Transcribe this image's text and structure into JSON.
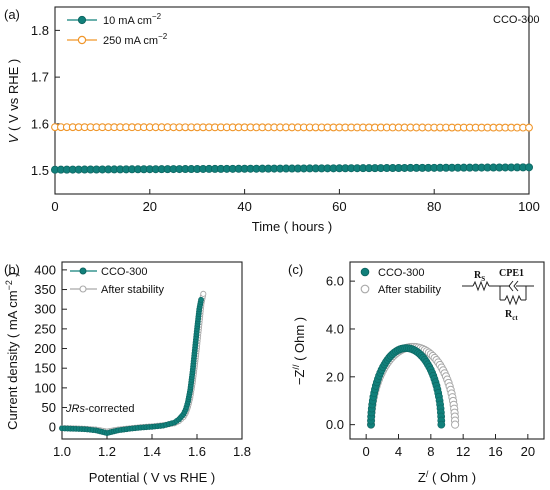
{
  "colors": {
    "teal": "#11807b",
    "orange": "#f0962a",
    "gray": "#a9a9a9",
    "axis": "#222222"
  },
  "chart_data": [
    {
      "panel": "(a)",
      "type": "scatter",
      "annotation": "CCO-300",
      "xlabel": "Time ( hours )",
      "ylabel_italic": "V",
      "ylabel_rest": " ( V vs RHE )",
      "xlim": [
        0,
        100
      ],
      "ylim": [
        1.45,
        1.85
      ],
      "xticks": [
        0,
        20,
        40,
        60,
        80,
        100
      ],
      "yticks": [
        1.5,
        1.6,
        1.7,
        1.8
      ],
      "legend_position": "top-left",
      "series": [
        {
          "name": "10 mA cm",
          "name_sup": "−2",
          "color": "teal",
          "marker": "filled-circle",
          "x_start": 0,
          "x_end": 100,
          "x_step": 1.25,
          "y_start": 1.502,
          "y_end": 1.507
        },
        {
          "name": "250 mA cm",
          "name_sup": "−2",
          "color": "orange",
          "marker": "open-circle",
          "x_start": 0,
          "x_end": 100,
          "x_step": 1.25,
          "y_start": 1.593,
          "y_end": 1.592
        }
      ]
    },
    {
      "panel": "(b)",
      "type": "line",
      "xlabel": "Potential ( V vs RHE )",
      "ylabel": "Current density  ( mA cm",
      "ylabel_sup": "−2",
      "ylabel_end": " )",
      "annotation_italic": "JRs",
      "annotation_rest": "-corrected",
      "xlim": [
        1.0,
        1.8
      ],
      "ylim": [
        -30,
        420
      ],
      "xticks": [
        1.0,
        1.2,
        1.4,
        1.6,
        1.8
      ],
      "yticks": [
        0,
        50,
        100,
        150,
        200,
        250,
        300,
        350,
        400
      ],
      "legend_position": "top-left",
      "series": [
        {
          "name": "CCO-300",
          "color": "teal",
          "marker": "filled-circle-dense",
          "x": [
            1.0,
            1.05,
            1.1,
            1.15,
            1.18,
            1.2,
            1.22,
            1.25,
            1.3,
            1.35,
            1.4,
            1.45,
            1.5,
            1.52,
            1.54,
            1.55,
            1.56,
            1.57,
            1.58,
            1.59,
            1.6,
            1.61,
            1.62
          ],
          "y": [
            -3,
            -4,
            -5,
            -8,
            -12,
            -15,
            -12,
            -8,
            -4,
            -1,
            1,
            4,
            12,
            20,
            33,
            45,
            65,
            95,
            140,
            195,
            250,
            300,
            330
          ]
        },
        {
          "name": "After stability",
          "color": "gray",
          "marker": "open-circle-dense",
          "x": [
            1.0,
            1.05,
            1.1,
            1.15,
            1.18,
            1.2,
            1.22,
            1.25,
            1.3,
            1.35,
            1.4,
            1.45,
            1.5,
            1.52,
            1.54,
            1.55,
            1.56,
            1.57,
            1.58,
            1.59,
            1.6,
            1.61,
            1.62,
            1.63
          ],
          "y": [
            -2,
            -3,
            -4,
            -6,
            -9,
            -11,
            -9,
            -6,
            -3,
            0,
            2,
            5,
            10,
            16,
            26,
            36,
            52,
            75,
            110,
            155,
            205,
            260,
            315,
            345
          ]
        }
      ]
    },
    {
      "panel": "(c)",
      "type": "scatter",
      "xlabel": "Z",
      "xlabel_sup": "/",
      "xlabel_end": " ( Ohm )",
      "ylabel": "−Z",
      "ylabel_sup": "//",
      "ylabel_end": " ( Ohm )",
      "xlim": [
        -2,
        22
      ],
      "ylim": [
        -0.6,
        6.8
      ],
      "xticks": [
        0,
        4,
        8,
        12,
        16,
        20
      ],
      "yticks": [
        0.0,
        2.0,
        4.0,
        6.0
      ],
      "legend_position": "top-left",
      "circuit": {
        "r1": "R",
        "r1_sub": "S",
        "cpe": "CPE1",
        "r2": "R",
        "r2_sub": "ct"
      },
      "series": [
        {
          "name": "CCO-300",
          "color": "teal",
          "marker": "filled-circle",
          "arc_start": 0.6,
          "arc_end": 9.3,
          "arc_peak": 3.2,
          "count": 60
        },
        {
          "name": "After stability",
          "color": "gray",
          "marker": "open-circle",
          "arc_start": 0.6,
          "arc_end": 11.0,
          "arc_peak": 3.25,
          "count": 62
        }
      ]
    }
  ]
}
